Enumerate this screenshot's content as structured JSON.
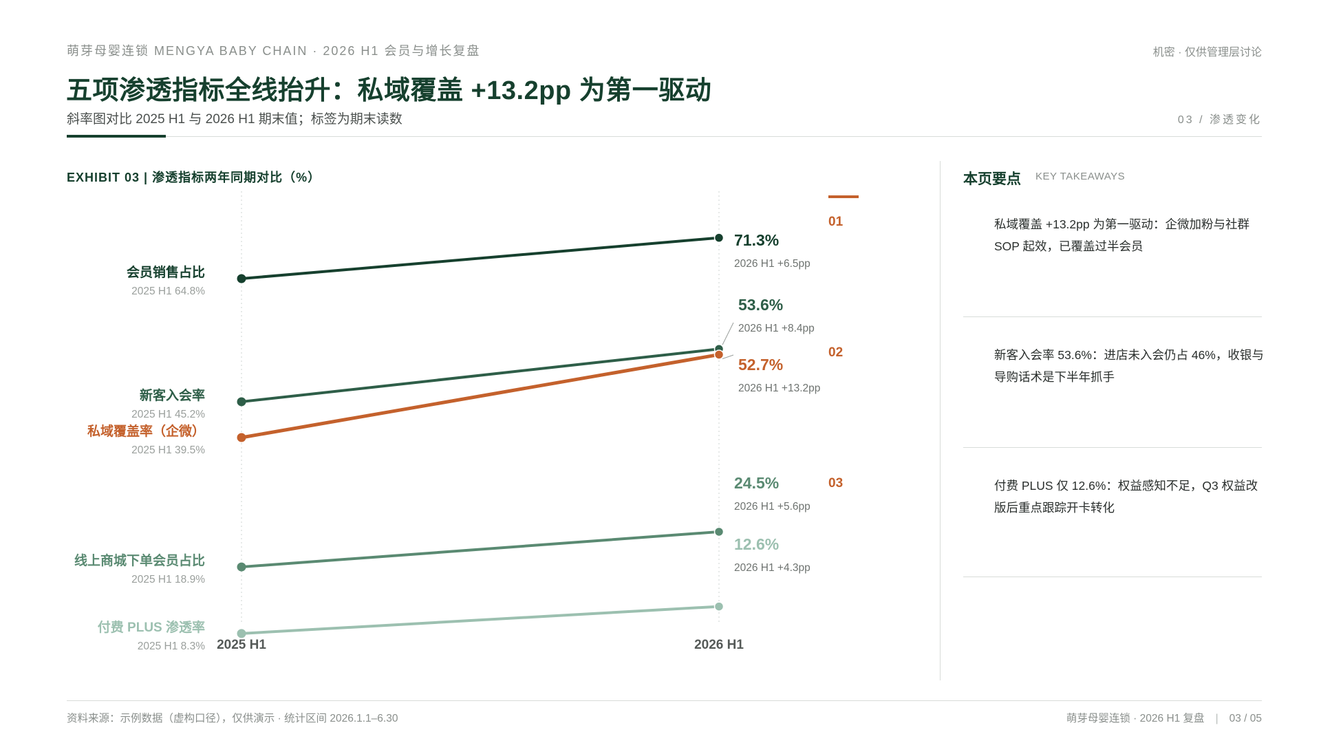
{
  "header": {
    "topline": "萌芽母婴连锁 MENGYA BABY CHAIN · 2026 H1 会员与增长复盘",
    "confidential": "机密 · 仅供管理层讨论",
    "title": "五项渗透指标全线抬升：私域覆盖 +13.2pp 为第一驱动",
    "subtitle": "斜率图对比 2025 H1 与 2026 H1 期末值；标签为期末读数",
    "section": "03 / 渗透变化"
  },
  "exhibit_label": "EXHIBIT 03 | 渗透指标两年同期对比（%）",
  "chart_data": {
    "type": "line",
    "x": [
      "2025 H1",
      "2026 H1"
    ],
    "ylim": [
      0,
      80
    ],
    "series": [
      {
        "name": "会员销售占比",
        "values": [
          64.8,
          71.3
        ],
        "start_label": "2025 H1   64.8%",
        "end_value": "71.3%",
        "end_note": "2026 H1   +6.5pp",
        "color": "#16402e"
      },
      {
        "name": "新客入会率",
        "values": [
          45.2,
          53.6
        ],
        "start_label": "2025 H1   45.2%",
        "end_value": "53.6%",
        "end_note": "2026 H1   +8.4pp",
        "color": "#2e5e48"
      },
      {
        "name": "私域覆盖率（企微）",
        "values": [
          39.5,
          52.7
        ],
        "start_label": "2025 H1   39.5%",
        "end_value": "52.7%",
        "end_note": "2026 H1   +13.2pp",
        "color": "#c4612c"
      },
      {
        "name": "线上商城下单会员占比",
        "values": [
          18.9,
          24.5
        ],
        "start_label": "2025 H1   18.9%",
        "end_value": "24.5%",
        "end_note": "2026 H1   +5.6pp",
        "color": "#5a8a72"
      },
      {
        "name": "付费 PLUS 渗透率",
        "values": [
          8.3,
          12.6
        ],
        "start_label": "2025 H1   8.3%",
        "end_value": "12.6%",
        "end_note": "2026 H1   +4.3pp",
        "color": "#9cc0b0"
      }
    ]
  },
  "takeaways": {
    "title": "本页要点",
    "subtitle": "KEY TAKEAWAYS",
    "items": [
      {
        "num": "01",
        "text": "私域覆盖 +13.2pp 为第一驱动：企微加粉与社群 SOP 起效，已覆盖过半会员"
      },
      {
        "num": "02",
        "text": "新客入会率 53.6%：进店未入会仍占 46%，收银与导购话术是下半年抓手"
      },
      {
        "num": "03",
        "text": "付费 PLUS 仅 12.6%：权益感知不足，Q3 权益改版后重点跟踪开卡转化"
      }
    ]
  },
  "footer": {
    "source": "资料来源：示例数据（虚构口径），仅供演示 · 统计区间 2026.1.1–6.30",
    "brand": "萌芽母婴连锁 · 2026 H1 复盘",
    "page": "03 / 05"
  }
}
